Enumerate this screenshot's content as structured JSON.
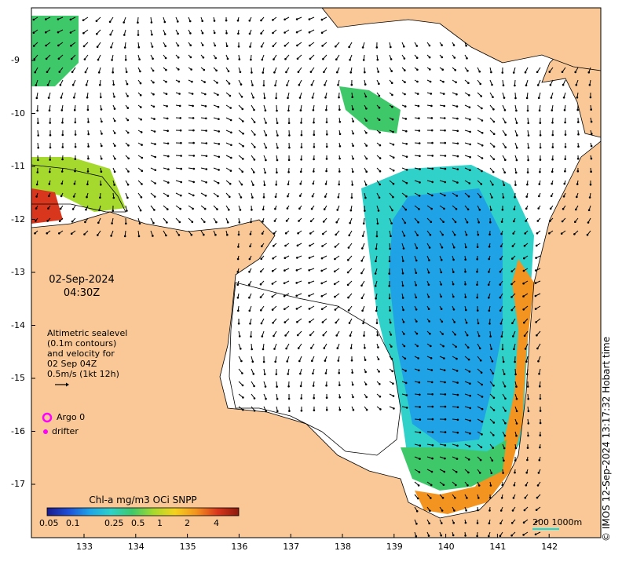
{
  "map": {
    "date_line1": "02-Sep-2024",
    "date_line2": "04:30Z",
    "info_lines": [
      "Altimetric sealevel",
      "(0.1m contours)",
      "and velocity for",
      "02 Sep 04Z",
      "0.5m/s (1kt 12h)"
    ],
    "argo_label": "Argo 0",
    "drifter_label": "drifter",
    "colorbar_title": "Chl-a mg/m3 OCi SNPP",
    "colorbar_ticks": [
      "0.05",
      "0.1",
      "0.25",
      "0.5",
      "1",
      "2",
      "4"
    ],
    "colorbar_colors": [
      "#1a1a8c",
      "#1f4fd6",
      "#1fa3e6",
      "#2fd1c9",
      "#3fc86a",
      "#a6d92e",
      "#f4d21f",
      "#f39320",
      "#d9371d",
      "#8c1a0d"
    ],
    "lon_ticks": [
      "133",
      "134",
      "135",
      "136",
      "137",
      "138",
      "139",
      "140",
      "141",
      "142"
    ],
    "lat_ticks": [
      "-9",
      "-10",
      "-11",
      "-12",
      "-13",
      "-14",
      "-15",
      "-16",
      "-17"
    ],
    "scale_label": "200  1000m",
    "copyright": "© IMOS 12-Sep-2024 13:17:32 Hobart time",
    "colors": {
      "land": "#f9c896",
      "sea": "#ffffff",
      "coast": "#000000",
      "argo": "#ff00ff",
      "drifter": "#ff00ff",
      "contour": "#00e5e5"
    }
  }
}
